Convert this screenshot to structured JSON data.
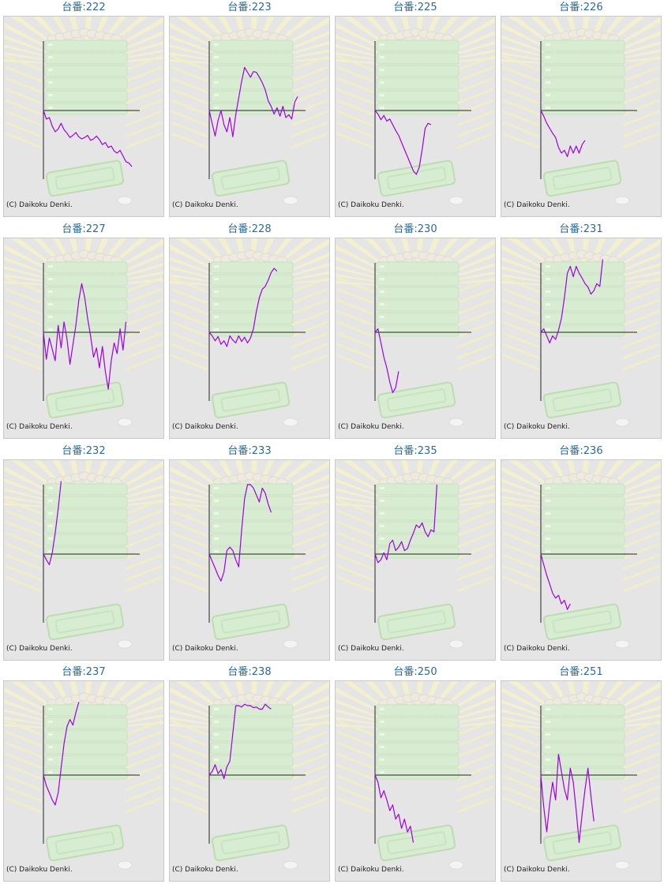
{
  "chart_data": [
    {
      "type": "line",
      "title": "台番:222",
      "values": [
        0,
        -0.12,
        -0.1,
        -0.22,
        -0.3,
        -0.26,
        -0.18,
        -0.27,
        -0.32,
        -0.38,
        -0.35,
        -0.31,
        -0.37,
        -0.4,
        -0.38,
        -0.35,
        -0.42,
        -0.4,
        -0.36,
        -0.41,
        -0.48,
        -0.45,
        -0.52,
        -0.5,
        -0.57,
        -0.6,
        -0.56,
        -0.64,
        -0.72,
        -0.74,
        -0.79
      ]
    },
    {
      "type": "line",
      "title": "台番:223",
      "values": [
        0,
        -0.18,
        -0.36,
        -0.14,
        0,
        -0.2,
        -0.3,
        -0.1,
        -0.37,
        -0.06,
        0.18,
        0.42,
        0.62,
        0.55,
        0.48,
        0.56,
        0.55,
        0.48,
        0.4,
        0.3,
        0.14,
        0.06,
        -0.05,
        0.04,
        -0.08,
        0.06,
        -0.1,
        -0.06,
        -0.12,
        0.12,
        0.2
      ]
    },
    {
      "type": "line",
      "title": "台番:225",
      "values": [
        0,
        -0.05,
        -0.13,
        -0.07,
        -0.15,
        -0.12,
        -0.2,
        -0.28,
        -0.35,
        -0.45,
        -0.55,
        -0.65,
        -0.75,
        -0.85,
        -0.9,
        -0.8,
        -0.55,
        -0.25,
        -0.18,
        -0.2
      ]
    },
    {
      "type": "line",
      "title": "台番:226",
      "values": [
        0,
        -0.08,
        -0.18,
        -0.25,
        -0.32,
        -0.38,
        -0.52,
        -0.6,
        -0.56,
        -0.65,
        -0.5,
        -0.6,
        -0.5,
        -0.6,
        -0.48,
        -0.42
      ]
    },
    {
      "type": "line",
      "title": "台番:227",
      "values": [
        0,
        -0.38,
        -0.08,
        -0.24,
        -0.4,
        0.1,
        -0.22,
        0.15,
        -0.1,
        -0.45,
        -0.18,
        0.1,
        0.46,
        0.7,
        0.5,
        0.2,
        -0.05,
        -0.35,
        -0.22,
        -0.5,
        -0.2,
        -0.55,
        -0.8,
        -0.4,
        -0.15,
        -0.3,
        0.05,
        -0.25,
        0.15
      ]
    },
    {
      "type": "line",
      "title": "台番:228",
      "values": [
        0,
        -0.05,
        -0.12,
        -0.06,
        -0.17,
        -0.12,
        -0.2,
        -0.05,
        -0.11,
        -0.15,
        -0.05,
        -0.13,
        -0.07,
        -0.15,
        -0.08,
        0.05,
        0.3,
        0.5,
        0.62,
        0.66,
        0.75,
        0.86,
        0.92,
        0.88
      ]
    },
    {
      "type": "line",
      "title": "台番:230",
      "values": [
        0,
        0.05,
        -0.15,
        -0.35,
        -0.5,
        -0.7,
        -0.85,
        -0.78,
        -0.55
      ]
    },
    {
      "type": "line",
      "title": "台番:231",
      "values": [
        0,
        0.05,
        -0.05,
        -0.15,
        -0.05,
        -0.1,
        0.03,
        0.2,
        0.5,
        0.85,
        0.95,
        0.8,
        0.95,
        0.85,
        0.78,
        0.7,
        0.65,
        0.55,
        0.6,
        0.7,
        0.66,
        1.05
      ]
    },
    {
      "type": "line",
      "title": "台番:232",
      "values": [
        0,
        -0.08,
        -0.15,
        0.02,
        0.3,
        0.65,
        1.05
      ]
    },
    {
      "type": "line",
      "title": "台番:233",
      "values": [
        0,
        -0.1,
        -0.2,
        -0.3,
        -0.38,
        -0.25,
        0.05,
        0.1,
        0.05,
        -0.08,
        -0.18,
        0.35,
        0.8,
        1.0,
        1.0,
        0.95,
        0.85,
        0.75,
        0.95,
        0.88,
        0.72,
        0.6
      ]
    },
    {
      "type": "line",
      "title": "台番:235",
      "values": [
        0,
        -0.12,
        -0.08,
        0.02,
        -0.08,
        0.15,
        0.2,
        0.05,
        0.1,
        0.18,
        0.05,
        0.08,
        0.2,
        0.3,
        0.42,
        0.38,
        0.45,
        0.32,
        0.25,
        0.35,
        0.32,
        1.0
      ]
    },
    {
      "type": "line",
      "title": "台番:236",
      "values": [
        0,
        -0.15,
        -0.3,
        -0.42,
        -0.55,
        -0.62,
        -0.58,
        -0.7,
        -0.65,
        -0.78,
        -0.7
      ]
    },
    {
      "type": "line",
      "title": "台番:237",
      "values": [
        0,
        -0.15,
        -0.25,
        -0.35,
        -0.42,
        -0.25,
        0.1,
        0.45,
        0.7,
        0.8,
        0.72,
        0.9,
        1.05
      ]
    },
    {
      "type": "line",
      "title": "台番:238",
      "values": [
        0,
        0.05,
        0.15,
        0.02,
        0.08,
        -0.05,
        0.12,
        0.2,
        0.6,
        1.0,
        1.0,
        0.98,
        1.02,
        1.0,
        1.0,
        0.97,
        0.98,
        0.95,
        0.95,
        1.02,
        0.98,
        0.95
      ]
    },
    {
      "type": "line",
      "title": "台番:250",
      "values": [
        0,
        -0.1,
        -0.32,
        -0.22,
        -0.35,
        -0.5,
        -0.42,
        -0.62,
        -0.55,
        -0.75,
        -0.62,
        -0.8,
        -0.72,
        -0.95
      ]
    },
    {
      "type": "line",
      "title": "台番:251",
      "values": [
        0,
        -0.45,
        -0.8,
        -0.4,
        -0.1,
        -0.35,
        0.3,
        0.05,
        -0.2,
        -0.35,
        0.1,
        -0.1,
        -0.5,
        -0.95,
        -0.55,
        -0.2,
        0.1,
        -0.3,
        -0.65
      ]
    }
  ],
  "copyright": "(C) Daikoku Denki.",
  "colors": {
    "series": "#9d00e6",
    "axis": "#222222",
    "title": "#2d6a92",
    "panel_bg": "#e5e5e5",
    "panel_border": "#c9c9c9"
  }
}
